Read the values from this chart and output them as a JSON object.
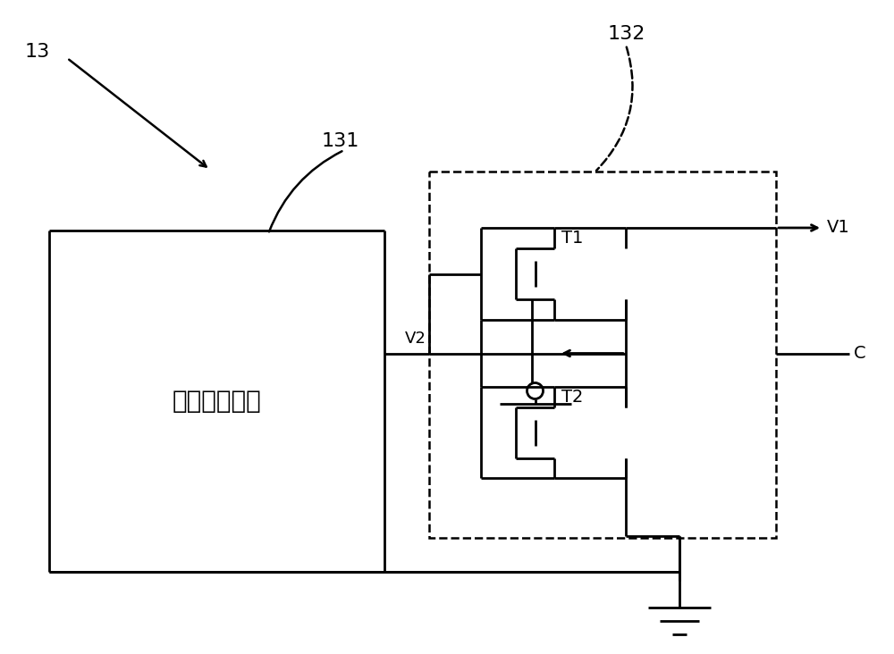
{
  "bg_color": "#ffffff",
  "line_color": "#000000",
  "fig_width": 10.0,
  "fig_height": 7.32,
  "dpi": 100,
  "label_13": "13",
  "label_131": "131",
  "label_132": "132",
  "label_V1": "V1",
  "label_V2": "V2",
  "label_C": "C",
  "label_T1": "T1",
  "label_T2": "T2",
  "label_box": "电压输出电路"
}
